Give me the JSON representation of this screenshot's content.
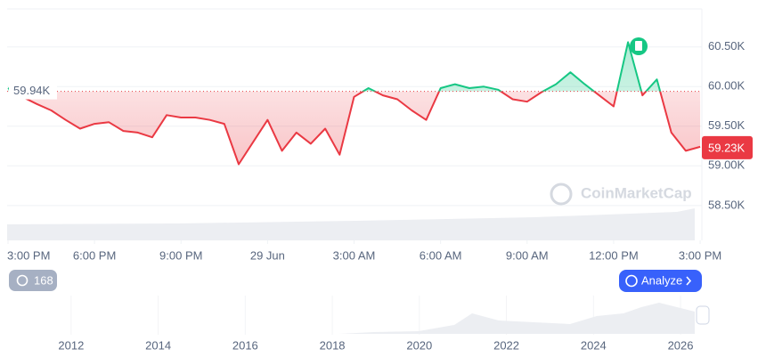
{
  "chart_data": {
    "type": "line",
    "x": [
      0,
      0.5,
      1,
      1.5,
      2,
      2.5,
      3,
      3.5,
      4,
      4.5,
      5,
      5.5,
      6,
      6.5,
      7,
      7.5,
      8,
      8.5,
      9,
      9.5,
      10,
      10.5,
      11,
      11.5,
      12,
      12.5,
      13,
      13.5,
      14,
      14.5,
      15,
      15.5,
      16,
      16.5,
      17,
      17.5,
      18,
      18.5,
      19,
      19.5,
      20,
      20.5,
      21,
      21.5,
      22,
      22.5,
      23,
      23.5,
      24
    ],
    "values": [
      59980,
      59870,
      59780,
      59700,
      59580,
      59470,
      59530,
      59550,
      59440,
      59420,
      59360,
      59640,
      59610,
      59610,
      59580,
      59530,
      59020,
      59300,
      59580,
      59190,
      59420,
      59280,
      59470,
      59140,
      59870,
      59980,
      59890,
      59840,
      59700,
      59580,
      59980,
      60030,
      59980,
      60000,
      59960,
      59840,
      59810,
      59930,
      60030,
      60180,
      60030,
      59890,
      59750,
      60560,
      59890,
      60090,
      59420,
      59190,
      59240
    ],
    "up_color": "#16c784",
    "down_color": "#ea3943",
    "xlim": [
      -0.03,
      24.06
    ],
    "xticks": [
      {
        "value": 0,
        "label": "3:00 PM"
      },
      {
        "value": 3,
        "label": "6:00 PM"
      },
      {
        "value": 6,
        "label": "9:00 PM"
      },
      {
        "value": 9,
        "label": "29 Jun"
      },
      {
        "value": 12,
        "label": "3:00 AM"
      },
      {
        "value": 15,
        "label": "6:00 AM"
      },
      {
        "value": 18,
        "label": "9:00 AM"
      },
      {
        "value": 21,
        "label": "12:00 PM"
      },
      {
        "value": 24,
        "label": "3:00 PM"
      }
    ],
    "ylim": [
      58060,
      60980
    ],
    "yticks": [
      {
        "value": 58500,
        "label": "58.50K"
      },
      {
        "value": 59000,
        "label": "59.00K"
      },
      {
        "value": 59500,
        "label": "59.50K"
      },
      {
        "value": 60000,
        "label": "60.00K"
      },
      {
        "value": 60500,
        "label": "60.50K"
      }
    ],
    "grid": true,
    "baseline": {
      "value": 59940,
      "label": "59.94K"
    },
    "current": {
      "value": 59230,
      "label": "59.23K"
    },
    "watermark": "CoinMarketCap"
  },
  "navigator": {
    "xlim": [
      2010.53,
      2026.49
    ],
    "xticks": [
      2012,
      2014,
      2016,
      2018,
      2020,
      2022,
      2024,
      2026
    ]
  },
  "controls": {
    "history_count": 168,
    "analyze": "Analyze"
  }
}
